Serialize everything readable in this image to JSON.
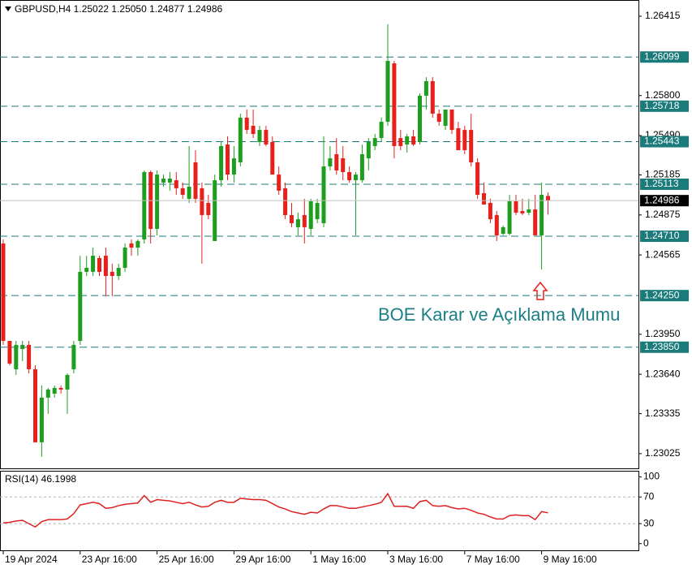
{
  "chart_data": {
    "type": "candlestick",
    "header": "GBPUSD,H4  1.25022 1.25050 1.24877 1.24986",
    "categories": [
      "19 Apr 2024",
      null,
      null,
      null,
      null,
      null,
      null,
      null,
      null,
      null,
      null,
      null,
      "23 Apr 16:00",
      null,
      null,
      null,
      null,
      null,
      null,
      null,
      null,
      null,
      null,
      null,
      "25 Apr 16:00",
      null,
      null,
      null,
      null,
      null,
      null,
      null,
      null,
      null,
      null,
      null,
      "29 Apr 16:00",
      null,
      null,
      null,
      null,
      null,
      null,
      null,
      null,
      null,
      null,
      null,
      "1 May 16:00",
      null,
      null,
      null,
      null,
      null,
      null,
      null,
      null,
      null,
      null,
      null,
      "3 May 16:00",
      null,
      null,
      null,
      null,
      null,
      null,
      null,
      null,
      null,
      null,
      null,
      "7 May 16:00",
      null,
      null,
      null,
      null,
      null,
      null,
      null,
      null,
      null,
      null,
      null,
      "9 May 16:00",
      null
    ],
    "open": [
      1.24654,
      1.23899,
      1.23679,
      1.23836,
      1.23868,
      1.23679,
      1.23113,
      1.23459,
      1.2349,
      1.23534,
      1.23522,
      1.23679,
      1.23899,
      1.24434,
      1.24434,
      1.24541,
      1.24559,
      1.24434,
      1.24402,
      1.24465,
      1.24654,
      1.24622,
      1.24685,
      1.25207,
      1.24767,
      1.25126,
      1.25126,
      1.25144,
      1.25082,
      1.25,
      1.25283,
      1.25082,
      1.24968,
      1.24673,
      1.25144,
      1.25421,
      1.25188,
      1.25283,
      1.25629,
      1.25566,
      1.2544,
      1.25534,
      1.2544,
      1.25188,
      1.25082,
      1.24874,
      1.2478,
      1.24874,
      1.24767,
      1.24842,
      1.24811,
      1.25251,
      1.25346,
      1.25314,
      1.25207,
      1.25144,
      1.25144,
      1.25314,
      1.25409,
      1.25471,
      1.25597,
      1.2605,
      1.25471,
      1.25421,
      1.25484,
      1.2544,
      1.25799,
      1.25912,
      1.2566,
      1.25566,
      1.25692,
      1.25547,
      1.25534,
      1.25534,
      1.25283,
      1.25044,
      1.24968,
      1.24874,
      1.24729,
      1.24729,
      1.24981,
      1.24905,
      1.24893,
      1.24918,
      1.24717,
      1.25022
    ],
    "high": [
      1.24685,
      1.23899,
      1.23899,
      1.23899,
      1.23899,
      1.2371,
      1.23553,
      1.23534,
      1.23553,
      1.23553,
      1.23647,
      1.23899,
      1.24559,
      1.24559,
      1.24622,
      1.24559,
      1.24622,
      1.24497,
      1.24497,
      1.24654,
      1.24685,
      1.24685,
      1.2522,
      1.2522,
      1.2522,
      1.25188,
      1.25207,
      1.25207,
      1.25126,
      1.25409,
      1.25377,
      1.25126,
      1.25031,
      1.25188,
      1.2544,
      1.25484,
      1.25409,
      1.2566,
      1.25692,
      1.25692,
      1.25566,
      1.25566,
      1.25484,
      1.25251,
      1.25126,
      1.24968,
      1.24893,
      1.25,
      1.25,
      1.25,
      1.25484,
      1.25409,
      1.25471,
      1.25409,
      1.25251,
      1.25207,
      1.25421,
      1.25471,
      1.25503,
      1.25629,
      1.26352,
      1.26069,
      1.25534,
      1.25503,
      1.25534,
      1.25817,
      1.25943,
      1.25943,
      1.25692,
      1.25692,
      1.25692,
      1.25597,
      1.25566,
      1.2566,
      1.25314,
      1.25126,
      1.25,
      1.24905,
      1.24792,
      1.25031,
      1.25031,
      1.25,
      1.25,
      1.25031,
      1.25126,
      1.2505
    ],
    "low": [
      1.23868,
      1.2371,
      1.23635,
      1.23742,
      1.23647,
      1.23113,
      1.23,
      1.23333,
      1.23459,
      1.2349,
      1.23333,
      1.23647,
      1.23868,
      1.24402,
      1.24402,
      1.24402,
      1.24245,
      1.24245,
      1.24371,
      1.24434,
      1.24559,
      1.24559,
      1.24654,
      1.24654,
      1.24717,
      1.25094,
      1.25063,
      1.25031,
      1.25,
      1.24968,
      1.24968,
      1.24497,
      1.24842,
      1.24673,
      1.25094,
      1.25144,
      1.25126,
      1.25251,
      1.25503,
      1.25471,
      1.25409,
      1.25409,
      1.25188,
      1.25031,
      1.24842,
      1.2478,
      1.24717,
      1.24654,
      1.24717,
      1.24811,
      1.2478,
      1.2522,
      1.25188,
      1.25144,
      1.25126,
      1.24717,
      1.25126,
      1.2522,
      1.25377,
      1.2544,
      1.25566,
      1.25314,
      1.25377,
      1.25358,
      1.25409,
      1.25421,
      1.25692,
      1.25629,
      1.25566,
      1.25534,
      1.25503,
      1.25377,
      1.25346,
      1.25251,
      1.25,
      1.24956,
      1.24811,
      1.24673,
      1.24717,
      1.24717,
      1.24874,
      1.24874,
      1.24874,
      1.24717,
      1.24453,
      1.24877
    ],
    "close": [
      1.23899,
      1.23723,
      1.23868,
      1.23868,
      1.23679,
      1.23113,
      1.23459,
      1.23522,
      1.23534,
      1.23522,
      1.23635,
      1.23868,
      1.24434,
      1.24465,
      1.24559,
      1.24434,
      1.24402,
      1.24402,
      1.24465,
      1.24622,
      1.24622,
      1.24673,
      1.25207,
      1.24767,
      1.25188,
      1.25157,
      1.25157,
      1.25082,
      1.25031,
      1.25094,
      1.25,
      1.24874,
      1.24874,
      1.25144,
      1.25409,
      1.25188,
      1.25314,
      1.25629,
      1.25534,
      1.25503,
      1.25534,
      1.25421,
      1.25188,
      1.25063,
      1.24874,
      1.24811,
      1.24842,
      1.2478,
      1.24981,
      1.24968,
      1.25251,
      1.25314,
      1.2522,
      1.25207,
      1.25144,
      1.25188,
      1.25346,
      1.2544,
      1.25471,
      1.25597,
      1.26069,
      1.25409,
      1.25409,
      1.25484,
      1.25421,
      1.25799,
      1.25912,
      1.2566,
      1.25597,
      1.25692,
      1.25534,
      1.25377,
      1.25377,
      1.25283,
      1.25031,
      1.24956,
      1.24842,
      1.24717,
      1.2478,
      1.24981,
      1.24893,
      1.24887,
      1.24918,
      1.24717,
      1.25031,
      1.24986
    ],
    "up_color": "#1e9e1e",
    "down_color": "#e8201c",
    "ylim": [
      1.22911,
      1.26541
    ],
    "yticks": [
      1.26415,
      {
        "value": 1.258,
        "label": "1.25800"
      },
      {
        "value": 1.2549,
        "label": "1.25490"
      },
      1.25185,
      1.24875,
      1.24565,
      {
        "value": 1.2395,
        "label": "1.23950"
      },
      {
        "value": 1.2364,
        "label": "1.23640"
      },
      1.23335,
      1.23025
    ],
    "levels": [
      1.26099,
      1.25718,
      1.25443,
      1.25113,
      {
        "value": 1.2471,
        "label": "1.24710"
      },
      {
        "value": 1.2425,
        "label": "1.24250"
      },
      {
        "value": 1.2385,
        "label": "1.23850"
      }
    ],
    "level_color": "#1b7b7b",
    "annotation": "BOE Karar ve Açıklama Mumu",
    "indicator": {
      "type": "line",
      "label": "RSI(14) 46.1998",
      "color": "#e02020",
      "values": [
        31,
        32,
        34,
        35,
        30,
        25,
        33,
        36,
        36,
        36,
        37,
        45,
        58,
        60,
        62,
        60,
        53,
        54,
        57,
        59,
        60,
        61,
        72,
        62,
        66,
        65,
        64,
        62,
        60,
        62,
        58,
        55,
        56,
        62,
        65,
        62,
        62,
        68,
        67,
        66,
        66,
        65,
        60,
        55,
        52,
        48,
        46,
        44,
        47,
        46,
        52,
        57,
        57,
        55,
        53,
        53,
        55,
        57,
        59,
        62,
        75,
        56,
        56,
        56,
        53,
        63,
        65,
        57,
        56,
        57,
        54,
        52,
        53,
        50,
        46,
        44,
        40,
        37,
        37,
        42,
        43,
        42,
        42,
        36,
        48,
        46.1998
      ],
      "ylim": [
        -10,
        108
      ],
      "yticks": [
        100,
        70,
        30,
        0
      ],
      "levels": [
        70,
        30
      ]
    }
  }
}
